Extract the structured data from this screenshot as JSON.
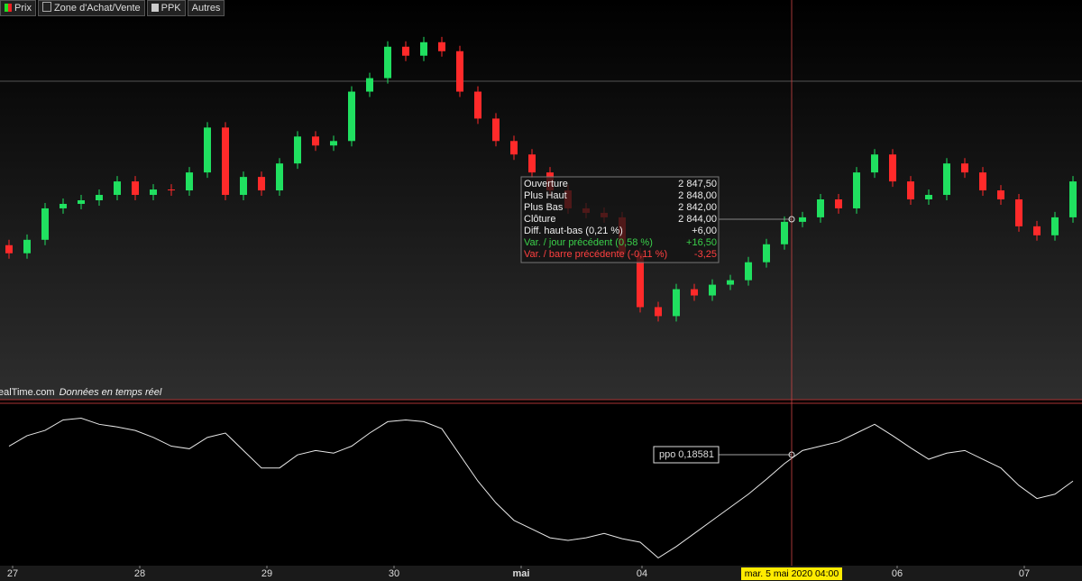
{
  "toolbar": [
    "Prix",
    "Zone d'Achat/Vente",
    "PPK",
    "Autres"
  ],
  "source": "ealTime.com",
  "source_note": "Données en temps réel",
  "x_labels": [
    "27",
    "28",
    "29",
    "30",
    "mai",
    "04",
    "06",
    "07"
  ],
  "cursor_label": "mar. 5 mai 2020 04:00",
  "tooltip": [
    {
      "label": "Ouverture",
      "value": "2 847,50"
    },
    {
      "label": "Plus Haut",
      "value": "2 848,00"
    },
    {
      "label": "Plus Bas",
      "value": "2 842,00"
    },
    {
      "label": "Clôture",
      "value": "2 844,00"
    },
    {
      "label": "Diff. haut-bas (0,21 %)",
      "value": "+6,00"
    },
    {
      "label": "Var. / jour précédent (0,58 %)",
      "value": "+16,50"
    },
    {
      "label": "Var. / barre précédente (-0,11 %)",
      "value": "-3,25"
    }
  ],
  "ppo_label": "ppo",
  "ppo_value": "0,18581",
  "chart_data": [
    {
      "type": "candlestick",
      "up_color": "#20e060",
      "down_color": "#ff2a2a",
      "ylim": [
        2745.5,
        2965.5
      ],
      "open": [
        2830,
        2825.5,
        2833,
        2850.5,
        2853,
        2855,
        2858,
        2865.5,
        2858,
        2861,
        2860.5,
        2870.5,
        2895.5,
        2858,
        2868,
        2860.5,
        2875.5,
        2890.5,
        2885.5,
        2888,
        2915.5,
        2923,
        2940.5,
        2935.5,
        2943,
        2938,
        2915.5,
        2900.5,
        2888,
        2880.5,
        2870.5,
        2860.5,
        2850.5,
        2848,
        2845.5,
        2825.5,
        2795.5,
        2790.5,
        2805.5,
        2802,
        2808,
        2810.5,
        2820.5,
        2830.5,
        2843,
        2845.5,
        2855.5,
        2850.5,
        2870.5,
        2880.5,
        2865.5,
        2855.5,
        2858,
        2875.5,
        2870.5,
        2860.5,
        2855.5,
        2840.5,
        2835.5,
        2845.5
      ],
      "high": [
        2833,
        2836,
        2853.5,
        2856,
        2858,
        2861,
        2868.5,
        2868.5,
        2864,
        2864,
        2873.5,
        2898.5,
        2898.5,
        2871,
        2871,
        2878.5,
        2893.5,
        2893.5,
        2891,
        2918.5,
        2926,
        2943.5,
        2943.5,
        2946,
        2946,
        2941,
        2918.5,
        2903.5,
        2891,
        2883.5,
        2873.5,
        2863.5,
        2853.5,
        2851,
        2848.5,
        2828.5,
        2798.5,
        2808.5,
        2808.5,
        2811,
        2813.5,
        2823.5,
        2833.5,
        2846,
        2848.5,
        2858.5,
        2858.5,
        2873.5,
        2883.5,
        2883.5,
        2868.5,
        2861,
        2878.5,
        2878.5,
        2873.5,
        2863.5,
        2858.5,
        2843.5,
        2848.5,
        2868.5
      ],
      "low": [
        2822.5,
        2822.5,
        2830,
        2847.5,
        2850,
        2852,
        2855,
        2855,
        2855,
        2857.5,
        2857.5,
        2867.5,
        2855,
        2855,
        2857.5,
        2857.5,
        2872.5,
        2882.5,
        2882.5,
        2885,
        2912.5,
        2920,
        2932.5,
        2932.5,
        2935,
        2912.5,
        2897.5,
        2885,
        2877.5,
        2867.5,
        2857.5,
        2847.5,
        2845,
        2842.5,
        2822.5,
        2792.5,
        2787.5,
        2787.5,
        2799,
        2799,
        2805,
        2807.5,
        2817.5,
        2827.5,
        2840,
        2842.5,
        2847.5,
        2847.5,
        2867.5,
        2862.5,
        2852.5,
        2852.5,
        2855,
        2867.5,
        2857.5,
        2852.5,
        2837.5,
        2832.5,
        2832.5,
        2842.5
      ],
      "close": [
        2825.5,
        2833,
        2850.5,
        2853,
        2855,
        2858,
        2865.5,
        2858,
        2861,
        2860.5,
        2870.5,
        2895.5,
        2858,
        2868,
        2860.5,
        2875.5,
        2890.5,
        2885.5,
        2888,
        2915.5,
        2923,
        2940.5,
        2935.5,
        2943,
        2938,
        2915.5,
        2900.5,
        2888,
        2880.5,
        2870.5,
        2860.5,
        2850.5,
        2848,
        2845.5,
        2825.5,
        2795.5,
        2790.5,
        2805.5,
        2802,
        2808,
        2810.5,
        2820.5,
        2830.5,
        2843,
        2845.5,
        2855.5,
        2850.5,
        2870.5,
        2880.5,
        2865.5,
        2855.5,
        2858,
        2875.5,
        2870.5,
        2860.5,
        2855.5,
        2840.5,
        2835.5,
        2845.5,
        2865.5
      ]
    },
    {
      "type": "line",
      "color": "#e8e8e8",
      "ylim": [
        -1.07,
        0.79
      ],
      "values": [
        0.33,
        0.45,
        0.51,
        0.63,
        0.65,
        0.58,
        0.55,
        0.51,
        0.43,
        0.33,
        0.3,
        0.43,
        0.48,
        0.28,
        0.08,
        0.08,
        0.23,
        0.28,
        0.25,
        0.33,
        0.48,
        0.61,
        0.63,
        0.61,
        0.53,
        0.23,
        -0.07,
        -0.32,
        -0.52,
        -0.62,
        -0.72,
        -0.75,
        -0.72,
        -0.67,
        -0.73,
        -0.77,
        -0.95,
        -0.82,
        -0.67,
        -0.52,
        -0.37,
        -0.22,
        -0.05,
        0.13,
        0.28,
        0.33,
        0.38,
        0.48,
        0.58,
        0.45,
        0.31,
        0.18,
        0.25,
        0.28,
        0.18,
        0.08,
        -0.12,
        -0.27,
        -0.22,
        -0.07
      ]
    }
  ]
}
